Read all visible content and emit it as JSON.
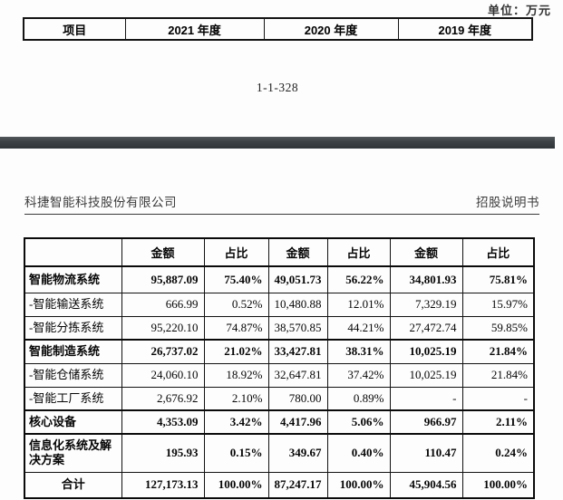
{
  "unit_label": "单位：万元",
  "page_number": "1-1-328",
  "doc_header": {
    "company": "科捷智能科技股份有限公司",
    "doc_type": "招股说明书"
  },
  "top_table": {
    "headers": [
      "项目",
      "2021 年度",
      "2020 年度",
      "2019 年度"
    ]
  },
  "main_table": {
    "headers": [
      "",
      "金额",
      "占比",
      "金额",
      "占比",
      "金额",
      "占比"
    ],
    "rows": [
      {
        "label": "智能物流系统",
        "bold": true,
        "center": false,
        "values": [
          "95,887.09",
          "75.40%",
          "49,051.73",
          "56.22%",
          "34,801.93",
          "75.81%"
        ]
      },
      {
        "label": "-智能输送系统",
        "bold": false,
        "center": false,
        "values": [
          "666.99",
          "0.52%",
          "10,480.88",
          "12.01%",
          "7,329.19",
          "15.97%"
        ]
      },
      {
        "label": "-智能分拣系统",
        "bold": false,
        "center": false,
        "values": [
          "95,220.10",
          "74.87%",
          "38,570.85",
          "44.21%",
          "27,472.74",
          "59.85%"
        ]
      },
      {
        "label": "智能制造系统",
        "bold": true,
        "center": false,
        "values": [
          "26,737.02",
          "21.02%",
          "33,427.81",
          "38.31%",
          "10,025.19",
          "21.84%"
        ]
      },
      {
        "label": "-智能仓储系统",
        "bold": false,
        "center": false,
        "values": [
          "24,060.10",
          "18.92%",
          "32,647.81",
          "37.42%",
          "10,025.19",
          "21.84%"
        ]
      },
      {
        "label": "-智能工厂系统",
        "bold": false,
        "center": false,
        "values": [
          "2,676.92",
          "2.10%",
          "780.00",
          "0.89%",
          "-",
          "-"
        ]
      },
      {
        "label": "核心设备",
        "bold": true,
        "center": false,
        "values": [
          "4,353.09",
          "3.42%",
          "4,417.96",
          "5.06%",
          "966.97",
          "2.11%"
        ]
      },
      {
        "label": "信息化系统及解决方案",
        "bold": true,
        "center": false,
        "values": [
          "195.93",
          "0.15%",
          "349.67",
          "0.40%",
          "110.47",
          "0.24%"
        ]
      },
      {
        "label": "合计",
        "bold": true,
        "center": true,
        "values": [
          "127,173.13",
          "100.00%",
          "87,247.17",
          "100.00%",
          "45,904.56",
          "100.00%"
        ]
      }
    ]
  }
}
